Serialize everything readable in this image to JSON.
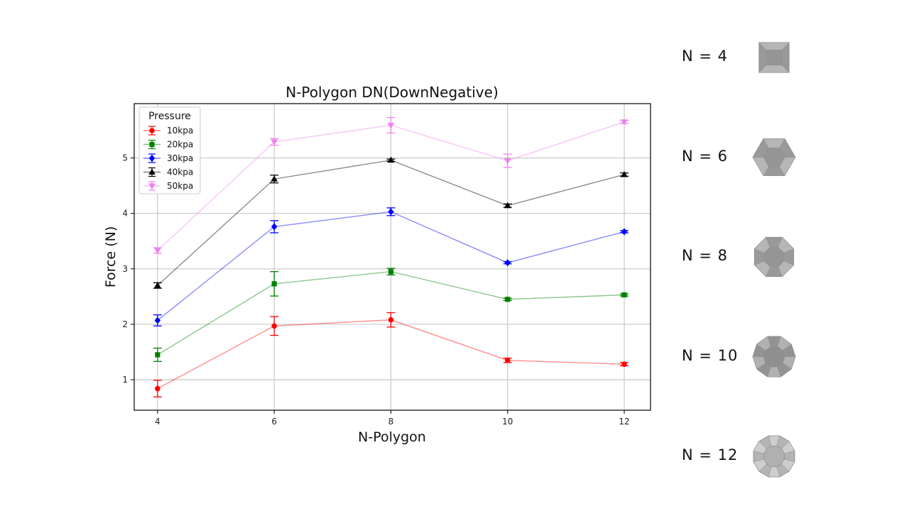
{
  "chart_data": {
    "type": "line",
    "title": "N-Polygon DN(DownNegative)",
    "xlabel": "N-Polygon",
    "ylabel": "Force (N)",
    "x": [
      4,
      6,
      8,
      10,
      12
    ],
    "xticks": [
      "4",
      "6",
      "8",
      "10",
      "12"
    ],
    "yticks": [
      "1",
      "2",
      "3",
      "4",
      "5"
    ],
    "xlim": [
      3.6,
      12.45
    ],
    "ylim": [
      0.45,
      5.98
    ],
    "grid": true,
    "legend": {
      "title": "Pressure",
      "placement": "top-left"
    },
    "error_bars": true,
    "series": [
      {
        "name": "10kpa",
        "color": "#ff0000",
        "marker": "circle",
        "values": [
          0.84,
          1.97,
          2.08,
          1.35,
          1.28
        ],
        "errors": [
          0.15,
          0.17,
          0.13,
          0.04,
          0.03
        ]
      },
      {
        "name": "20kpa",
        "color": "#008000",
        "marker": "square",
        "values": [
          1.45,
          2.73,
          2.95,
          2.45,
          2.53
        ],
        "errors": [
          0.12,
          0.22,
          0.06,
          0.02,
          0.02
        ]
      },
      {
        "name": "30kpa",
        "color": "#0000ff",
        "marker": "diamond",
        "values": [
          2.07,
          3.76,
          4.03,
          3.11,
          3.67
        ],
        "errors": [
          0.1,
          0.11,
          0.07,
          0.02,
          0.02
        ]
      },
      {
        "name": "40kpa",
        "color": "#000000",
        "marker": "triangle-up",
        "values": [
          2.7,
          4.62,
          4.96,
          4.14,
          4.7
        ],
        "errors": [
          0.05,
          0.07,
          0.02,
          0.03,
          0.03
        ]
      },
      {
        "name": "50kpa",
        "color": "#ee82ee",
        "marker": "triangle-down",
        "values": [
          3.33,
          5.29,
          5.59,
          4.95,
          5.65
        ],
        "errors": [
          0.05,
          0.06,
          0.14,
          0.12,
          0.03
        ]
      }
    ]
  },
  "shapes": [
    {
      "label": "N = 4",
      "sides": 4,
      "color": "#a6a6a6"
    },
    {
      "label": "N = 6",
      "sides": 6,
      "color": "#a6a6a6"
    },
    {
      "label": "N = 8",
      "sides": 8,
      "color": "#a6a6a6"
    },
    {
      "label": "N = 10",
      "sides": 10,
      "color": "#a0a0a0"
    },
    {
      "label": "N = 12",
      "sides": 12,
      "color": "#c4c4c4"
    }
  ]
}
